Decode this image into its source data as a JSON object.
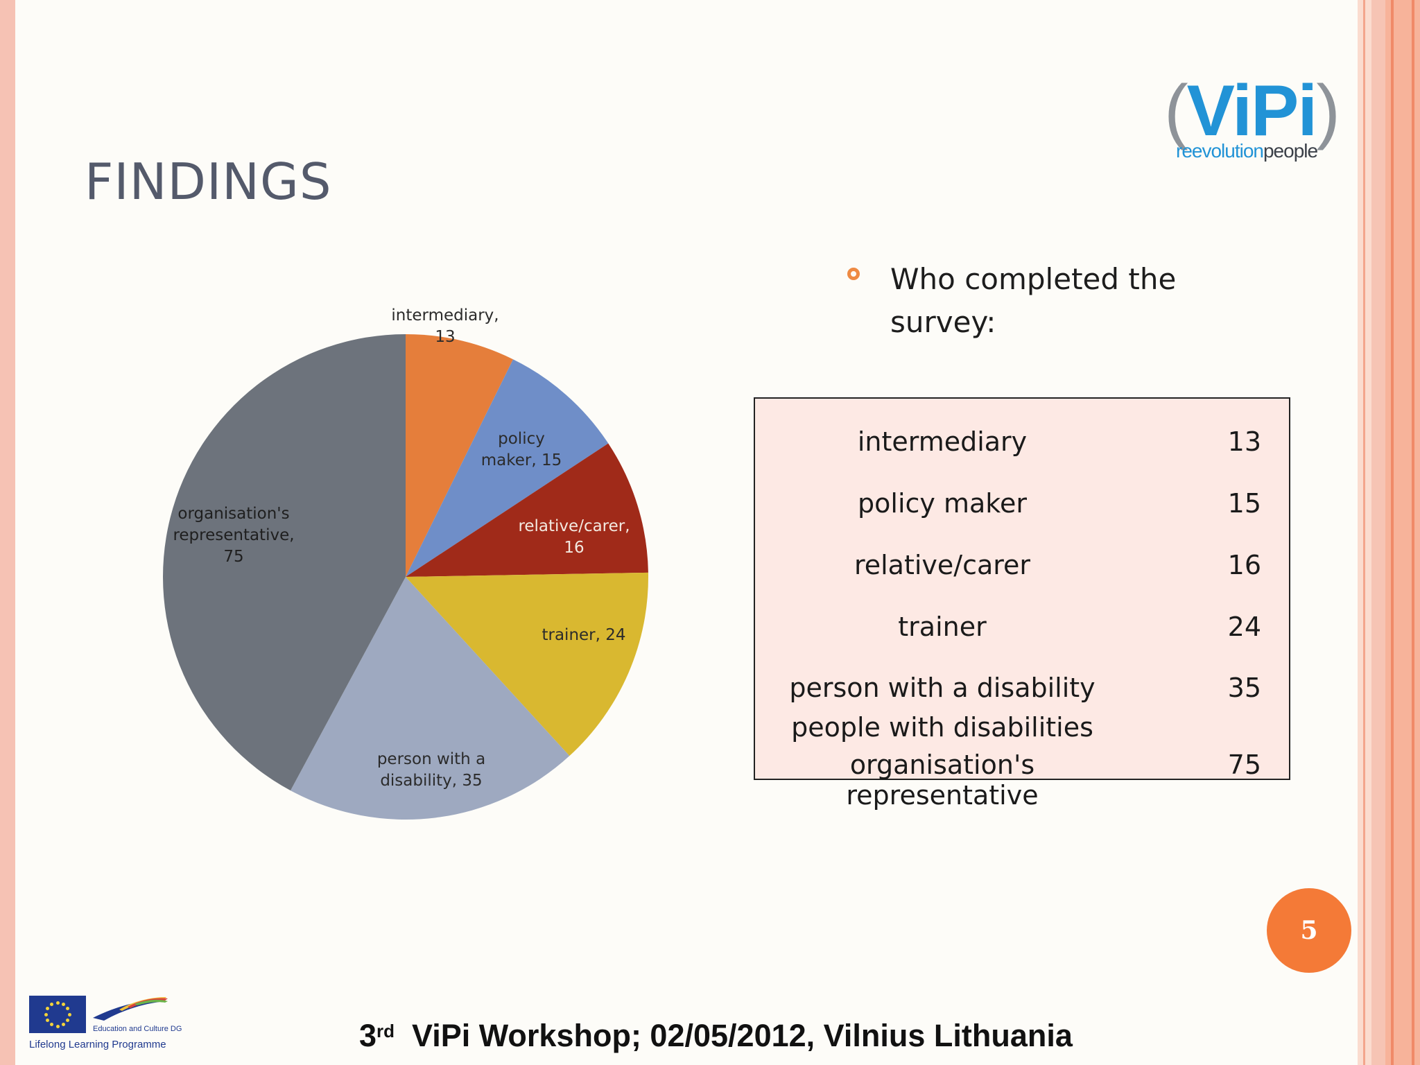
{
  "slide": {
    "title": "FINDINGS",
    "page_number": "5",
    "footer": {
      "ordinal": "3",
      "ordinal_suffix": "rd",
      "text": "ViPi Workshop; 02/05/2012, Vilnius Lithuania"
    }
  },
  "logo": {
    "paren_left": "(",
    "main": "ViPi",
    "paren_right": ")",
    "sub_blue": "reevolution",
    "sub_grey": "people"
  },
  "eu": {
    "dg_label": "Education and Culture DG",
    "programme": "Lifelong Learning Programme"
  },
  "bullet": {
    "line1": "Who completed the",
    "line2": "survey:"
  },
  "table": {
    "rows": [
      {
        "label": "intermediary",
        "value": "13"
      },
      {
        "label": "policy maker",
        "value": "15"
      },
      {
        "label": "relative/carer",
        "value": "16"
      },
      {
        "label": "trainer",
        "value": "24"
      },
      {
        "label": "person with a disability",
        "value": "35"
      },
      {
        "label": "people with disabilities",
        "value": ""
      },
      {
        "label": "organisation's representative",
        "value": "75"
      }
    ]
  },
  "colors": {
    "accent": "#f47a37",
    "title": "#545a6b",
    "logo_blue": "#2293d6"
  },
  "chart_data": {
    "type": "pie",
    "title": "",
    "categories": [
      "intermediary",
      "policy maker",
      "relative/carer",
      "trainer",
      "person with a disability",
      "organisation's representative"
    ],
    "values": [
      13,
      15,
      16,
      24,
      35,
      75
    ],
    "labels": [
      [
        "intermediary,",
        "13"
      ],
      [
        "policy",
        "maker, 15"
      ],
      [
        "relative/carer,",
        "16"
      ],
      [
        "trainer, 24"
      ],
      [
        "person with a",
        "disability, 35"
      ],
      [
        "organisation's",
        "representative,",
        "75"
      ]
    ],
    "colors": [
      "#e57e3b",
      "#6f8ec8",
      "#a02a19",
      "#d9b830",
      "#9ea9c0",
      "#6d737c"
    ],
    "start_angle_deg": 0,
    "direction": "clockwise",
    "legend": "none"
  }
}
